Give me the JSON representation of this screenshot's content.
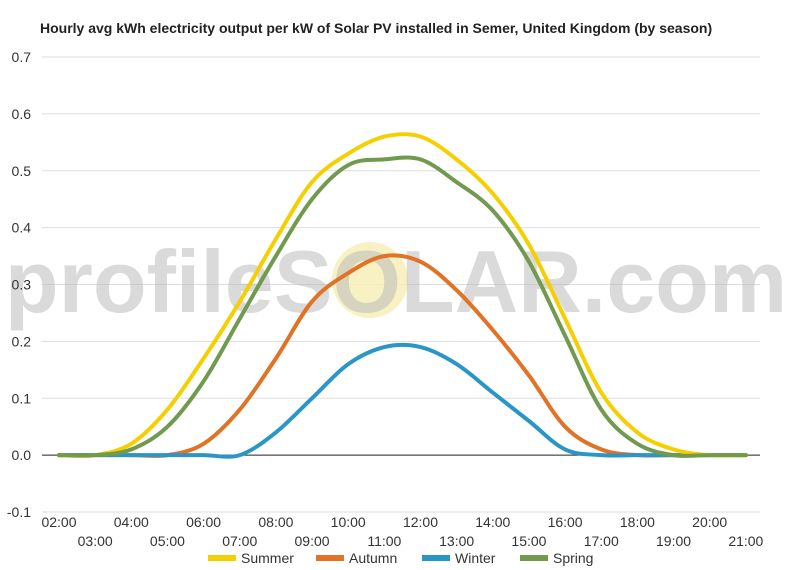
{
  "chart_data": {
    "type": "line",
    "title": "Hourly avg kWh electricity output per kW of Solar PV installed in Semer, United Kingdom (by season)",
    "xlabel": "",
    "ylabel": "",
    "ylim": [
      -0.1,
      0.7
    ],
    "yticks": [
      "-0.1",
      "0.0",
      "0.1",
      "0.2",
      "0.3",
      "0.4",
      "0.5",
      "0.6",
      "0.7"
    ],
    "categories": [
      "02:00",
      "03:00",
      "04:00",
      "05:00",
      "06:00",
      "07:00",
      "08:00",
      "09:00",
      "10:00",
      "11:00",
      "12:00",
      "13:00",
      "14:00",
      "15:00",
      "16:00",
      "17:00",
      "18:00",
      "19:00",
      "20:00",
      "21:00"
    ],
    "grid": true,
    "legend_position": "bottom",
    "series": [
      {
        "name": "Summer",
        "color": "#f5cf00",
        "values": [
          0.0,
          0.0,
          0.02,
          0.08,
          0.17,
          0.27,
          0.38,
          0.48,
          0.53,
          0.56,
          0.56,
          0.52,
          0.46,
          0.37,
          0.24,
          0.11,
          0.04,
          0.01,
          0.0,
          0.0
        ]
      },
      {
        "name": "Autumn",
        "color": "#e07326",
        "values": [
          0.0,
          0.0,
          0.0,
          0.0,
          0.02,
          0.08,
          0.17,
          0.27,
          0.32,
          0.35,
          0.34,
          0.29,
          0.22,
          0.14,
          0.05,
          0.01,
          0.0,
          0.0,
          0.0,
          0.0
        ]
      },
      {
        "name": "Winter",
        "color": "#2a96c8",
        "values": [
          0.0,
          0.0,
          0.0,
          0.0,
          0.0,
          0.0,
          0.04,
          0.1,
          0.16,
          0.19,
          0.19,
          0.16,
          0.11,
          0.06,
          0.01,
          0.0,
          0.0,
          0.0,
          0.0,
          0.0
        ]
      },
      {
        "name": "Spring",
        "color": "#709a4e",
        "values": [
          0.0,
          0.0,
          0.01,
          0.05,
          0.13,
          0.24,
          0.35,
          0.45,
          0.51,
          0.52,
          0.52,
          0.48,
          0.43,
          0.34,
          0.21,
          0.08,
          0.02,
          0.0,
          0.0,
          0.0
        ]
      }
    ]
  },
  "watermark": {
    "text": "profileSOLAR.com"
  }
}
